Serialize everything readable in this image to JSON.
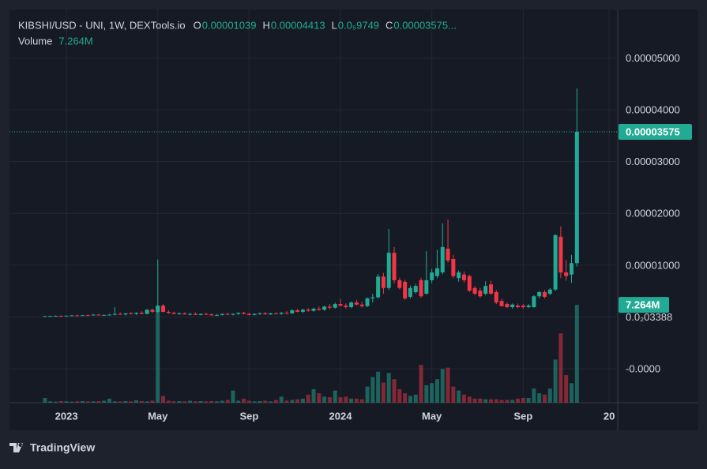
{
  "chart_data": {
    "type": "candlestick",
    "title": "KIBSHI/USD - UNI, 1W, DEXTools.io",
    "ohlc_legend": [
      {
        "key": "O",
        "value": "0.00001039"
      },
      {
        "key": "H",
        "value": "0.00004413"
      },
      {
        "key": "L",
        "value": "0.0₅9749"
      },
      {
        "key": "C",
        "value": "0.00003575..."
      }
    ],
    "volume_title": "Volume",
    "volume_label": "7.264M",
    "last_price_label": "0.00003575",
    "up_color": "#22ab94",
    "down_color": "#f23645",
    "open": [
      1.5e-07,
      1.8e-07,
      2e-07,
      2.2e-07,
      2e-07,
      2.6e-07,
      3e-07,
      2.8e-07,
      3.5e-07,
      3e-07,
      4.5e-07,
      3.5e-07,
      4e-07,
      4.5e-07,
      6e-07,
      5e-07,
      7e-07,
      6e-07,
      8e-07,
      6e-07,
      1.4e-06,
      1e-06,
      2.2e-06,
      1e-06,
      8e-07,
      6e-07,
      7e-07,
      5e-07,
      6e-07,
      4e-07,
      6e-07,
      5e-07,
      3e-07,
      4e-07,
      6e-07,
      5e-07,
      6e-07,
      8e-07,
      6e-07,
      4e-07,
      6e-07,
      7e-07,
      5e-07,
      7e-07,
      6e-07,
      8e-07,
      7e-07,
      1.3e-06,
      1e-06,
      1.4e-06,
      1.2e-06,
      1.6e-06,
      1.4e-06,
      2e-06,
      1.8e-06,
      2.5e-06,
      2.2e-06,
      1.9e-06,
      2.8e-06,
      2.4e-06,
      2.1e-06,
      3.6e-06,
      3.8e-06,
      7.8e-06,
      5.6e-06,
      1.24e-05,
      7.1e-06,
      6.8e-06,
      3.9e-06,
      4.8e-06,
      7.1e-06,
      4.5e-06,
      7.1e-06,
      7.9e-06,
      8.6e-06,
      1.32e-05,
      1.12e-05,
      7.5e-06,
      8.2e-06,
      7.9e-06,
      5.6e-06,
      5.1e-06,
      4.5e-06,
      6.3e-06,
      4.8e-06,
      3.1e-06,
      2.5e-06,
      1.9e-06,
      2.2e-06,
      2.2e-06,
      1.9e-06,
      1.9e-06,
      4e-06,
      4.8e-06,
      4.5e-06,
      5.3e-06,
      1.55e-05,
      8.6e-06,
      8.2e-06,
      1.039e-05
    ],
    "high": [
      2e-07,
      2.5e-07,
      3e-07,
      3e-07,
      3e-07,
      4e-07,
      4.5e-07,
      4e-07,
      5e-07,
      6e-07,
      6e-07,
      5e-07,
      6e-07,
      1.9e-06,
      9e-07,
      8e-07,
      1e-06,
      9e-07,
      1.1e-06,
      1.5e-06,
      1.6e-06,
      1.11e-05,
      2.5e-06,
      1.3e-06,
      1e-06,
      9e-07,
      9e-07,
      8e-07,
      9e-07,
      7e-07,
      8e-07,
      7e-07,
      6e-07,
      7e-07,
      8e-07,
      7e-07,
      9e-07,
      1e-06,
      8e-07,
      7e-07,
      9e-07,
      1e-06,
      8e-07,
      9e-07,
      1e-06,
      1.1e-06,
      1.5e-06,
      1.6e-06,
      1.6e-06,
      1.7e-06,
      1.8e-06,
      2e-06,
      2.2e-06,
      2.5e-06,
      2.8e-06,
      3.5e-06,
      2.6e-06,
      3e-06,
      3.3e-06,
      3e-06,
      3.8e-06,
      4.5e-06,
      8.3e-06,
      8.5e-06,
      1.7e-05,
      1.35e-05,
      7.6e-06,
      7.2e-06,
      6.1e-06,
      6.4e-06,
      7.6e-06,
      1.27e-05,
      9.3e-06,
      1.3e-05,
      1.81e-05,
      1.88e-05,
      1.2e-05,
      9e-06,
      8.8e-06,
      8.2e-06,
      6e-06,
      5.6e-06,
      6.9e-06,
      7e-06,
      5.2e-06,
      3.5e-06,
      2.8e-06,
      2.6e-06,
      2.6e-06,
      2.5e-06,
      2.5e-06,
      4.2e-06,
      5e-06,
      5.2e-06,
      5.6e-06,
      1.6e-05,
      1.75e-05,
      1.1e-05,
      1.2e-05,
      4.413e-05
    ],
    "low": [
      1e-07,
      1.5e-07,
      1.5e-07,
      1.8e-07,
      1.6e-07,
      2e-07,
      2.5e-07,
      2e-07,
      2.5e-07,
      2.5e-07,
      3e-07,
      2.5e-07,
      3e-07,
      3e-07,
      4e-07,
      3e-07,
      5e-07,
      4e-07,
      5e-07,
      5e-07,
      8e-07,
      8e-07,
      9e-07,
      6e-07,
      5e-07,
      4e-07,
      5e-07,
      3e-07,
      4e-07,
      3e-07,
      4e-07,
      3e-07,
      2e-07,
      3e-07,
      4e-07,
      3e-07,
      4e-07,
      5e-07,
      3e-07,
      3e-07,
      4e-07,
      5e-07,
      4e-07,
      5e-07,
      4e-07,
      5e-07,
      6e-07,
      9e-07,
      8e-07,
      1e-06,
      1e-06,
      1.2e-06,
      1.2e-06,
      1.5e-06,
      1.6e-06,
      2e-06,
      1.6e-06,
      1.7e-06,
      2.2e-06,
      1.8e-06,
      1.9e-06,
      2.8e-06,
      3.6e-06,
      4.5e-06,
      5.2e-06,
      6.5e-06,
      5.3e-06,
      3.3e-06,
      3.6e-06,
      4.5e-06,
      3.7e-06,
      4.3e-06,
      6.5e-06,
      7.5e-06,
      8.2e-06,
      1.05e-05,
      7.5e-06,
      6.8e-06,
      6.6e-06,
      4.8e-06,
      4.2e-06,
      3.7e-06,
      4.2e-06,
      4.3e-06,
      2.5e-06,
      2e-06,
      1.7e-06,
      1.6e-06,
      1.7e-06,
      1.6e-06,
      1.7e-06,
      1.8e-06,
      3.6e-06,
      3.6e-06,
      4.2e-06,
      5e-06,
      7.5e-06,
      7e-06,
      6.6e-06,
      9.749e-06
    ],
    "close": [
      1.8e-07,
      2e-07,
      2.2e-07,
      2e-07,
      2.6e-07,
      3e-07,
      2.8e-07,
      3.5e-07,
      3e-07,
      4.5e-07,
      3.5e-07,
      4e-07,
      4.5e-07,
      6e-07,
      5e-07,
      7e-07,
      6e-07,
      8e-07,
      6e-07,
      1.4e-06,
      1e-06,
      2.2e-06,
      1e-06,
      8e-07,
      6e-07,
      7e-07,
      5e-07,
      6e-07,
      4e-07,
      6e-07,
      5e-07,
      3e-07,
      4e-07,
      6e-07,
      5e-07,
      6e-07,
      8e-07,
      6e-07,
      4e-07,
      6e-07,
      7e-07,
      5e-07,
      7e-07,
      6e-07,
      8e-07,
      7e-07,
      1.3e-06,
      1e-06,
      1.4e-06,
      1.2e-06,
      1.6e-06,
      1.4e-06,
      2e-06,
      1.8e-06,
      2.5e-06,
      2.2e-06,
      1.9e-06,
      2.8e-06,
      2.4e-06,
      2.1e-06,
      3.6e-06,
      3.8e-06,
      7.8e-06,
      5.6e-06,
      1.24e-05,
      7.1e-06,
      5.6e-06,
      3.6e-06,
      5.6e-06,
      6e-06,
      4e-06,
      7.1e-06,
      8.6e-06,
      9.4e-06,
      1.35e-05,
      1.09e-05,
      7.9e-06,
      8.6e-06,
      7.1e-06,
      5.1e-06,
      4.5e-06,
      4e-06,
      6e-06,
      4.5e-06,
      2.8e-06,
      2.1e-06,
      1.9e-06,
      2.4e-06,
      1.9e-06,
      1.9e-06,
      2.2e-06,
      4e-06,
      4.8e-06,
      3.9e-06,
      5.3e-06,
      1.58e-05,
      8.6e-06,
      7.9e-06,
      1.04e-05,
      3.575e-05
    ],
    "volume": [
      0.35,
      0.1,
      0.08,
      0.12,
      0.1,
      0.08,
      0.1,
      0.12,
      0.1,
      0.1,
      0.12,
      0.15,
      0.3,
      0.1,
      0.1,
      0.12,
      0.1,
      0.18,
      0.12,
      0.1,
      0.15,
      7.2,
      0.5,
      0.15,
      0.1,
      0.12,
      0.1,
      0.15,
      0.1,
      0.12,
      0.1,
      0.12,
      0.1,
      0.15,
      0.2,
      0.9,
      0.15,
      0.3,
      0.15,
      0.1,
      0.12,
      0.15,
      0.1,
      0.2,
      0.45,
      0.15,
      0.2,
      0.25,
      0.3,
      0.6,
      1.0,
      0.7,
      0.45,
      0.4,
      0.9,
      0.4,
      0.45,
      0.3,
      0.3,
      0.25,
      1.2,
      1.9,
      2.3,
      1.5,
      2.2,
      1.75,
      1.0,
      0.7,
      0.5,
      0.6,
      2.8,
      1.3,
      1.45,
      1.75,
      2.5,
      2.6,
      1.2,
      0.9,
      0.6,
      0.45,
      0.3,
      0.3,
      0.25,
      0.25,
      0.25,
      0.2,
      0.2,
      0.2,
      0.3,
      0.35,
      0.35,
      1.05,
      0.7,
      0.6,
      1.05,
      3.2,
      5.15,
      2.05,
      1.45,
      7.264
    ],
    "ylim": [
      -1.654e-05,
      5.937e-05
    ],
    "yticks": [
      {
        "value": 5e-05,
        "label": "0.00005000"
      },
      {
        "value": 4e-05,
        "label": "0.00004000"
      },
      {
        "value": 3e-05,
        "label": "0.00003000"
      },
      {
        "value": 2e-05,
        "label": "0.00002000"
      },
      {
        "value": 1e-05,
        "label": "0.00001000"
      },
      {
        "value": 0,
        "label": "0.0₂03388"
      },
      {
        "value": -1e-05,
        "label": "-0.0000"
      }
    ],
    "volume_ylim": [
      0,
      29.2
    ],
    "xlim": [
      -6.6,
      106.6
    ],
    "xticks": [
      {
        "value": 4,
        "label": "2023"
      },
      {
        "value": 21,
        "label": "May"
      },
      {
        "value": 38,
        "label": "Sep"
      },
      {
        "value": 55,
        "label": "2024"
      },
      {
        "value": 72,
        "label": "May"
      },
      {
        "value": 89,
        "label": "Sep"
      },
      {
        "value": 105,
        "label": "20"
      }
    ],
    "grid": true,
    "watermark": "TradingView"
  }
}
